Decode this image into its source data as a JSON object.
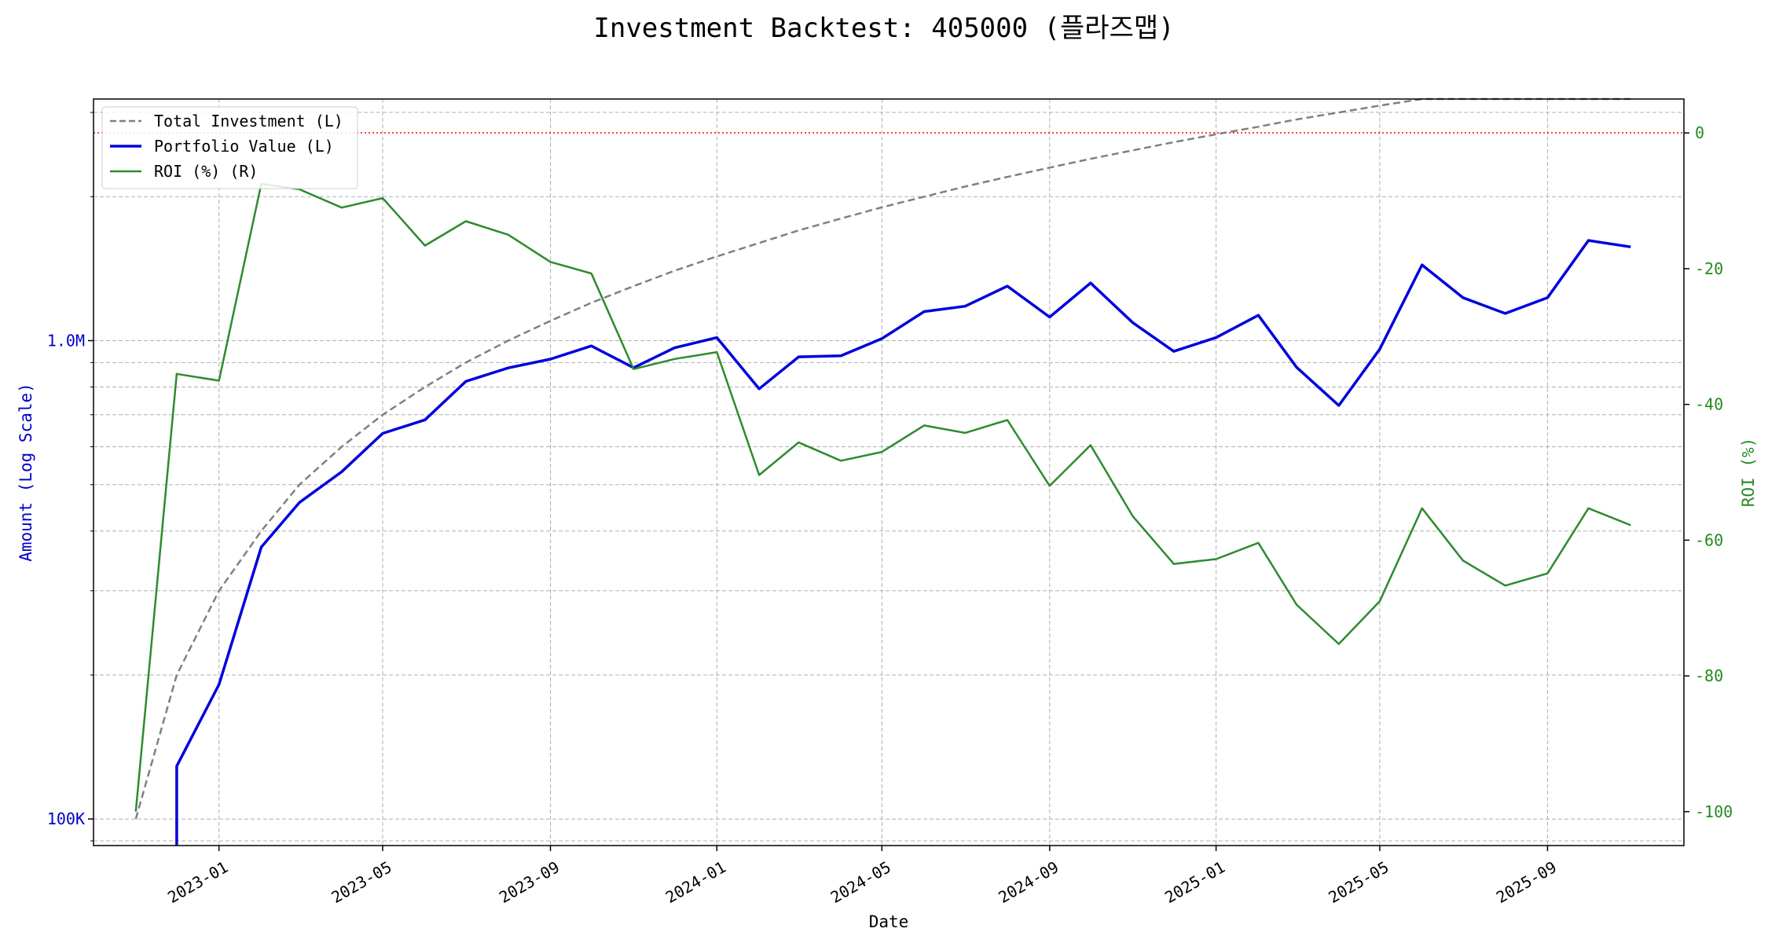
{
  "chart_data": {
    "type": "line",
    "title": "Investment Backtest: 405000 (플라즈맵)",
    "xlabel": "Date",
    "ylabel_left": "Amount (Log Scale)",
    "ylabel_right": "ROI (%)",
    "left_scale": "log",
    "left_ylim": [
      88000,
      3200000
    ],
    "right_ylim": [
      -105,
      5
    ],
    "x_range": [
      "2022-10-01",
      "2025-12-10"
    ],
    "x_ticks": [
      "2023-01-01",
      "2023-05-01",
      "2023-09-01",
      "2024-01-01",
      "2024-05-01",
      "2024-09-01",
      "2025-01-01",
      "2025-05-01",
      "2025-09-01"
    ],
    "x_tick_labels": [
      "2023-01",
      "2023-05",
      "2023-09",
      "2024-01",
      "2024-05",
      "2024-09",
      "2025-01",
      "2025-05",
      "2025-09"
    ],
    "left_ticks": [
      {
        "value": 100000,
        "label": "100K"
      },
      {
        "value": 1000000,
        "label": "1.0M"
      }
    ],
    "left_minor_ticks": [
      90000,
      200000,
      300000,
      400000,
      500000,
      600000,
      700000,
      800000,
      900000,
      2000000,
      3000000
    ],
    "right_ticks": [
      0,
      -20,
      -40,
      -60,
      -80,
      -100
    ],
    "colors": {
      "left_axis": "#0000cc",
      "right_axis": "#228b22",
      "investment": "#808080",
      "portfolio": "#0000dd",
      "roi": "#2e8b2e",
      "zero_line": "#ff0000"
    },
    "legend_position": "upper-left",
    "series": [
      {
        "name": "Total Investment (L)",
        "axis": "left",
        "style": "dashed",
        "x": [
          "2022-11-01",
          "2022-12-01",
          "2023-01-01",
          "2023-02-01",
          "2023-03-01",
          "2023-04-01",
          "2023-05-01",
          "2023-06-01",
          "2023-07-01",
          "2023-08-01",
          "2023-09-01",
          "2023-10-01",
          "2023-11-01",
          "2023-12-01",
          "2024-01-01",
          "2024-02-01",
          "2024-03-01",
          "2024-04-01",
          "2024-05-01",
          "2024-06-01",
          "2024-07-01",
          "2024-08-01",
          "2024-09-01",
          "2024-10-01",
          "2024-11-01",
          "2024-12-01",
          "2025-01-01",
          "2025-02-01",
          "2025-03-01",
          "2025-04-01",
          "2025-05-01",
          "2025-06-01",
          "2025-07-01",
          "2025-08-01",
          "2025-09-01",
          "2025-10-01",
          "2025-11-01"
        ],
        "values": [
          100000,
          200000,
          300000,
          400000,
          500000,
          600000,
          700000,
          800000,
          900000,
          1000000,
          1100000,
          1200000,
          1300000,
          1400000,
          1500000,
          1600000,
          1700000,
          1800000,
          1900000,
          2000000,
          2100000,
          2200000,
          2300000,
          2400000,
          2500000,
          2600000,
          2700000,
          2800000,
          2900000,
          3000000,
          3100000,
          3200000,
          3300000,
          3400000,
          3500000,
          3600000,
          3700000
        ]
      },
      {
        "name": "Portfolio Value (L)",
        "axis": "left",
        "style": "solid-thick",
        "x": [
          "2022-12-01",
          "2022-12-01",
          "2023-01-01",
          "2023-02-01",
          "2023-03-01",
          "2023-04-01",
          "2023-05-01",
          "2023-06-01",
          "2023-07-01",
          "2023-08-01",
          "2023-09-01",
          "2023-10-01",
          "2023-11-01",
          "2023-12-01",
          "2024-01-01",
          "2024-02-01",
          "2024-03-01",
          "2024-04-01",
          "2024-05-01",
          "2024-06-01",
          "2024-07-01",
          "2024-08-01",
          "2024-09-01",
          "2024-10-01",
          "2024-11-01",
          "2024-12-01",
          "2025-01-01",
          "2025-02-01",
          "2025-03-01",
          "2025-04-01",
          "2025-05-01",
          "2025-06-01",
          "2025-07-01",
          "2025-08-01",
          "2025-09-01",
          "2025-10-01",
          "2025-11-01"
        ],
        "values": [
          80000,
          129000,
          191000,
          370000,
          459000,
          532000,
          640000,
          683000,
          822000,
          877000,
          915000,
          975000,
          878000,
          966000,
          1015000,
          793000,
          925000,
          930000,
          1010000,
          1150000,
          1180000,
          1300000,
          1120000,
          1320000,
          1090000,
          950000,
          1015000,
          1130000,
          880000,
          732000,
          960000,
          1440000,
          1230000,
          1140000,
          1230000,
          1620000,
          1570000
        ]
      },
      {
        "name": "ROI (%) (R)",
        "axis": "right",
        "style": "solid",
        "x": [
          "2022-11-01",
          "2022-12-01",
          "2023-01-01",
          "2023-02-01",
          "2023-03-01",
          "2023-04-01",
          "2023-05-01",
          "2023-06-01",
          "2023-07-01",
          "2023-08-01",
          "2023-09-01",
          "2023-10-01",
          "2023-11-01",
          "2023-12-01",
          "2024-01-01",
          "2024-02-01",
          "2024-03-01",
          "2024-04-01",
          "2024-05-01",
          "2024-06-01",
          "2024-07-01",
          "2024-08-01",
          "2024-09-01",
          "2024-10-01",
          "2024-11-01",
          "2024-12-01",
          "2025-01-01",
          "2025-02-01",
          "2025-03-01",
          "2025-04-01",
          "2025-05-01",
          "2025-06-01",
          "2025-07-01",
          "2025-08-01",
          "2025-09-01",
          "2025-10-01",
          "2025-11-01"
        ],
        "values": [
          -100,
          -35.5,
          -36.5,
          -7.5,
          -8.3,
          -11,
          -9.6,
          -16.6,
          -13,
          -15,
          -19,
          -20.7,
          -34.8,
          -33.3,
          -32.3,
          -50.4,
          -45.6,
          -48.3,
          -47,
          -43.1,
          -44.2,
          -42.3,
          -52,
          -46,
          -56.5,
          -63.5,
          -62.8,
          -60.4,
          -69.5,
          -75.3,
          -69,
          -55.3,
          -63,
          -66.7,
          -64.9,
          -55.3,
          -57.8
        ]
      }
    ]
  }
}
